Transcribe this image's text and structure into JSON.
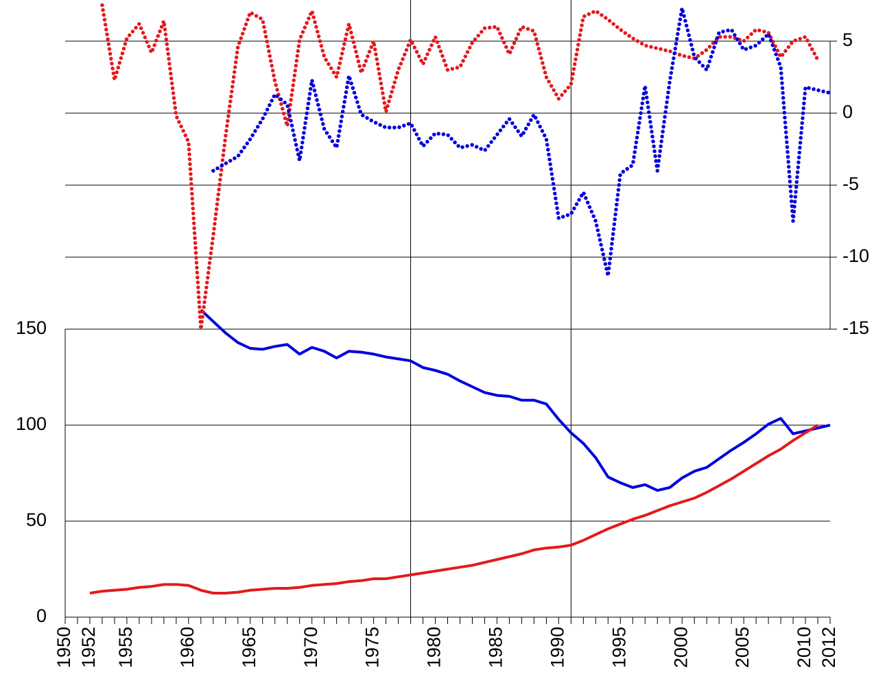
{
  "chart_data": {
    "type": "line",
    "x": [
      1950,
      1951,
      1952,
      1953,
      1954,
      1955,
      1956,
      1957,
      1958,
      1959,
      1960,
      1961,
      1962,
      1963,
      1964,
      1965,
      1966,
      1967,
      1968,
      1969,
      1970,
      1971,
      1972,
      1973,
      1974,
      1975,
      1976,
      1977,
      1978,
      1979,
      1980,
      1981,
      1982,
      1983,
      1984,
      1985,
      1986,
      1987,
      1988,
      1989,
      1990,
      1991,
      1992,
      1993,
      1994,
      1995,
      1996,
      1997,
      1998,
      1999,
      2000,
      2001,
      2002,
      2003,
      2004,
      2005,
      2006,
      2007,
      2008,
      2009,
      2010,
      2011,
      2012
    ],
    "xlim": [
      1950,
      2012
    ],
    "xticks": [
      1950,
      1952,
      1955,
      1960,
      1965,
      1970,
      1975,
      1980,
      1985,
      1990,
      1995,
      2000,
      2005,
      2010,
      2012
    ],
    "ylim": [
      0,
      150
    ],
    "yticks": [
      0,
      50,
      100,
      150
    ],
    "y2lim": [
      -15,
      7.5
    ],
    "y2ticks": [
      -15,
      -10,
      -5,
      0,
      5
    ],
    "grid": true,
    "reference_lines_x": [
      1978,
      1991
    ],
    "series": [
      {
        "color": "#0000dd",
        "style": "solid",
        "values": [
          null,
          null,
          null,
          null,
          null,
          null,
          null,
          null,
          null,
          null,
          null,
          160,
          154,
          148,
          143,
          140,
          139.5,
          141,
          142,
          137,
          140.5,
          138.5,
          135,
          138.5,
          138,
          137,
          135.5,
          134.5,
          133.5,
          130,
          128.5,
          126.5,
          123,
          120,
          117,
          115.5,
          115,
          113,
          113,
          111,
          103,
          96,
          90.5,
          83,
          73,
          70,
          67.5,
          69,
          66,
          67.5,
          72.5,
          76,
          78,
          82.5,
          87,
          91,
          95.5,
          100.5,
          103.5,
          95.5,
          97,
          98.5,
          100
        ]
      },
      {
        "color": "#e31a1c",
        "style": "solid",
        "values": [
          null,
          null,
          12.5,
          13.5,
          14,
          14.5,
          15.5,
          16,
          17,
          17,
          16.5,
          14,
          12.5,
          12.5,
          13,
          14,
          14.5,
          15,
          15,
          15.5,
          16.5,
          17,
          17.5,
          18.5,
          19,
          20,
          20,
          21,
          22,
          23,
          24,
          25,
          26,
          27,
          28.5,
          30,
          31.5,
          33,
          35,
          36,
          36.5,
          37.5,
          40,
          43,
          46,
          48.5,
          51,
          53,
          55.5,
          58,
          60,
          62,
          65,
          68.5,
          72,
          76,
          80,
          84,
          87.5,
          92,
          96,
          100,
          null
        ]
      },
      {
        "color": "#e31a1c",
        "style": "dotted",
        "axis": "y2",
        "values": [
          null,
          null,
          null,
          7.5,
          2.3,
          5.2,
          6.2,
          4.2,
          6.4,
          -0.2,
          -2,
          -15,
          -8.5,
          -1.6,
          4.6,
          7.0,
          6.5,
          2.2,
          -0.9,
          5.1,
          7.1,
          3.9,
          2.5,
          6.2,
          2.8,
          5.0,
          0.1,
          3.0,
          5.1,
          3.4,
          5.3,
          3.0,
          3.2,
          4.9,
          5.9,
          6.0,
          4.1,
          6.0,
          5.7,
          2.5,
          1.0,
          2.0,
          6.7,
          7.1,
          6.5,
          5.8,
          5.2,
          4.7,
          4.5,
          4.3,
          4.0,
          3.8,
          4.4,
          5.3,
          5.3,
          5.0,
          5.8,
          5.6,
          3.9,
          5.0,
          5.3,
          3.7,
          null
        ]
      },
      {
        "color": "#0000dd",
        "style": "dotted",
        "axis": "y2",
        "values": [
          null,
          null,
          null,
          null,
          null,
          null,
          null,
          null,
          null,
          null,
          null,
          null,
          -4.0,
          -3.5,
          -3.0,
          -1.8,
          -0.4,
          1.3,
          0.6,
          -3.3,
          2.3,
          -1.1,
          -2.4,
          2.6,
          -0.1,
          -0.6,
          -1.0,
          -1.0,
          -0.7,
          -2.3,
          -1.4,
          -1.5,
          -2.4,
          -2.2,
          -2.6,
          -1.5,
          -0.4,
          -1.6,
          -0.1,
          -1.8,
          -7.3,
          -7.0,
          -5.5,
          -7.5,
          -11.3,
          -4.2,
          -3.6,
          1.9,
          -4.0,
          2.2,
          7.3,
          3.9,
          3.0,
          5.6,
          5.8,
          4.4,
          4.7,
          5.5,
          3.2,
          -7.5,
          1.8,
          1.6,
          1.4
        ]
      }
    ]
  }
}
